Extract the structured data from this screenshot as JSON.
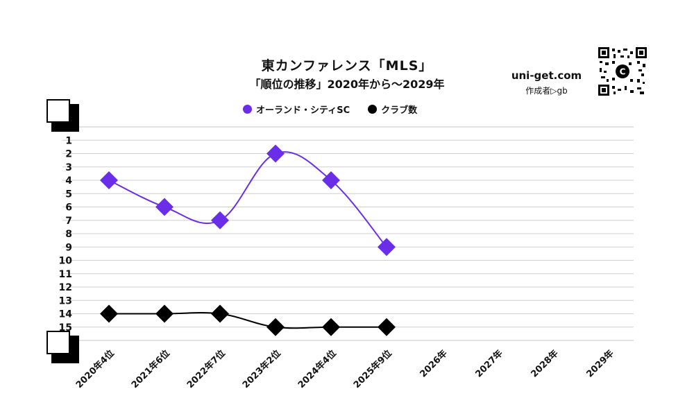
{
  "header": {
    "title": "東カンファレンス「MLS」",
    "subtitle": "「順位の推移」2020年から～2029年",
    "site": "uni-get.com",
    "author": "作成者▷gb",
    "qr_center": "C"
  },
  "chart_data": {
    "type": "line",
    "categories": [
      "2020年4位",
      "2021年6位",
      "2022年7位",
      "2023年2位",
      "2024年4位",
      "2025年9位",
      "2026年",
      "2027年",
      "2028年",
      "2029年"
    ],
    "y_ticks": [
      "1",
      "2",
      "3",
      "4",
      "5",
      "6",
      "7",
      "8",
      "9",
      "10",
      "11",
      "12",
      "13",
      "14",
      "15"
    ],
    "ylim": [
      0,
      16
    ],
    "y_inverted": true,
    "grid": true,
    "legend_position": "top-center",
    "series": [
      {
        "name": "オーランド・シティSC",
        "color": "#6a2ee8",
        "values": [
          4,
          6,
          7,
          2,
          4,
          9,
          null,
          null,
          null,
          null
        ]
      },
      {
        "name": "クラブ数",
        "color": "#000000",
        "values": [
          14,
          14,
          14,
          15,
          15,
          15,
          null,
          null,
          null,
          null
        ]
      }
    ]
  },
  "colors": {
    "grid": "#cfcfcf",
    "text": "#111111"
  }
}
